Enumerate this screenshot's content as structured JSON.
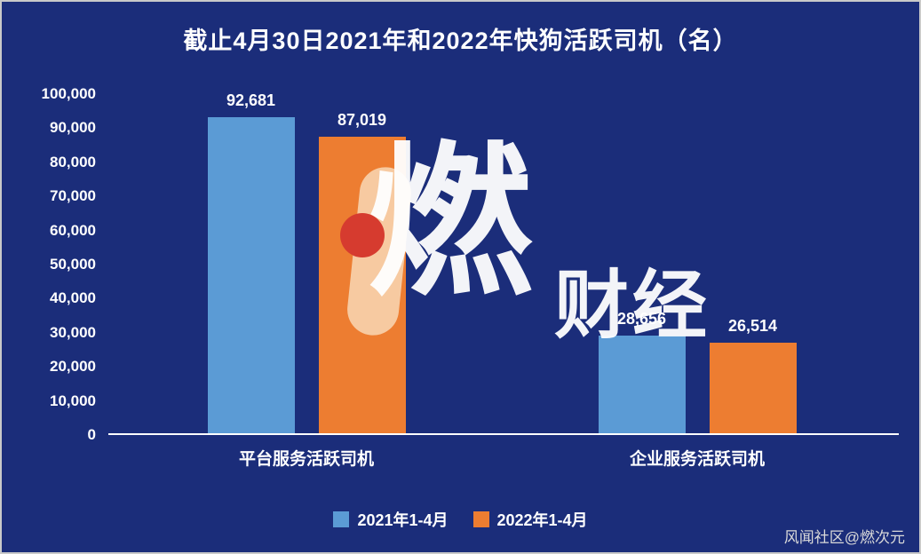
{
  "chart_data": {
    "type": "bar",
    "title": "截止4月30日2021年和2022年快狗活跃司机（名）",
    "categories": [
      "平台服务活跃司机",
      "企业服务活跃司机"
    ],
    "series": [
      {
        "name": "2021年1-4月",
        "color": "#5b9bd5",
        "values": [
          92681,
          28656
        ]
      },
      {
        "name": "2022年1-4月",
        "color": "#ed7d31",
        "values": [
          87019,
          26514
        ]
      }
    ],
    "value_labels": [
      "92,681",
      "87,019",
      "28,656",
      "26,514"
    ],
    "xlabel": "",
    "ylabel": "",
    "ylim": [
      0,
      100000
    ],
    "ytick_step": 10000,
    "grid": false,
    "legend_position": "bottom"
  },
  "watermark": {
    "text_main": "燃",
    "text_sub": "财经"
  },
  "credit": "风闻社区@燃次元",
  "colors": {
    "background": "#1b2d7a",
    "axis": "#ffffff",
    "text": "#ffffff",
    "series_2021": "#5b9bd5",
    "series_2022": "#ed7d31",
    "watermark_ribbon": "#f8cfa8",
    "watermark_dot": "#d63b2f"
  }
}
